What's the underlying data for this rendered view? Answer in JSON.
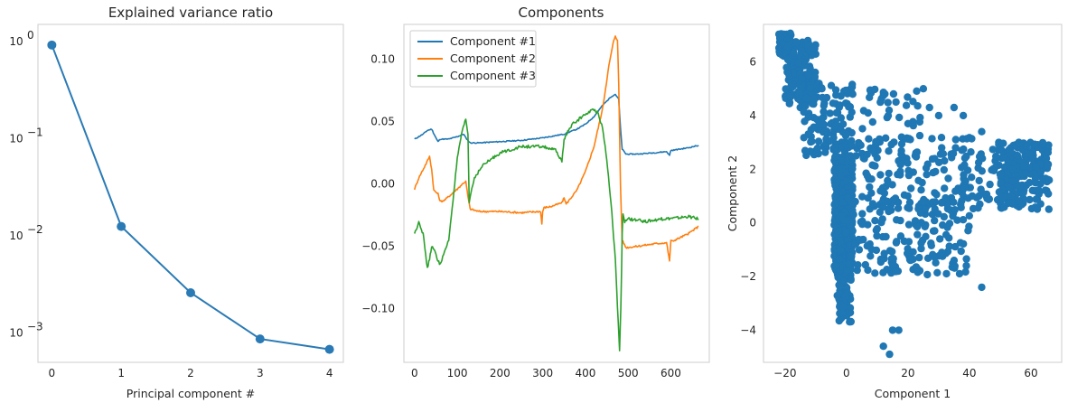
{
  "chart_data": [
    {
      "type": "line",
      "title": "Explained variance ratio",
      "xlabel": "Principal component #",
      "ylabel": "",
      "yscale": "log",
      "xlim": [
        -0.2,
        4.2
      ],
      "ylim": [
        0.0005,
        1.5
      ],
      "grid": false,
      "x_ticks": [
        {
          "value": 0,
          "label": "0"
        },
        {
          "value": 1,
          "label": "1"
        },
        {
          "value": 2,
          "label": "2"
        },
        {
          "value": 3,
          "label": "3"
        },
        {
          "value": 4,
          "label": "4"
        }
      ],
      "y_ticks": [
        {
          "value": 1,
          "base": "10",
          "exp": "0"
        },
        {
          "value": 0.1,
          "base": "10",
          "exp": "−1"
        },
        {
          "value": 0.01,
          "base": "10",
          "exp": "−2"
        },
        {
          "value": 0.001,
          "base": "10",
          "exp": "−3"
        }
      ],
      "series": [
        {
          "x": [
            0,
            1,
            2,
            3,
            4
          ],
          "values": [
            0.92,
            0.0125,
            0.0026,
            0.00087,
            0.00068
          ],
          "color": "#2a7ab5",
          "marker": "circle"
        }
      ]
    },
    {
      "type": "line",
      "title": "Components",
      "xlabel": "",
      "ylabel": "",
      "xlim": [
        -25,
        690
      ],
      "ylim": [
        -0.143,
        0.128
      ],
      "grid": false,
      "legend_position": "top-left",
      "x_ticks": [
        {
          "value": 0,
          "label": "0"
        },
        {
          "value": 100,
          "label": "100"
        },
        {
          "value": 200,
          "label": "200"
        },
        {
          "value": 300,
          "label": "300"
        },
        {
          "value": 400,
          "label": "400"
        },
        {
          "value": 500,
          "label": "500"
        },
        {
          "value": 600,
          "label": "600"
        }
      ],
      "y_ticks": [
        {
          "value": 0.1,
          "label": "0.10"
        },
        {
          "value": 0.05,
          "label": "0.05"
        },
        {
          "value": 0.0,
          "label": "0.00"
        },
        {
          "value": -0.05,
          "label": "−0.05"
        },
        {
          "value": -0.1,
          "label": "−0.10"
        }
      ],
      "series": [
        {
          "name": "Component #1",
          "color": "#1f77b4",
          "x": [
            0,
            20,
            30,
            40,
            50,
            55,
            60,
            80,
            100,
            115,
            120,
            130,
            150,
            200,
            250,
            300,
            350,
            380,
            400,
            420,
            440,
            460,
            470,
            478,
            482,
            486,
            495,
            520,
            560,
            590,
            597,
            600,
            603,
            640,
            665
          ],
          "values": [
            0.036,
            0.04,
            0.043,
            0.044,
            0.037,
            0.034,
            0.036,
            0.036,
            0.038,
            0.04,
            0.037,
            0.033,
            0.033,
            0.034,
            0.035,
            0.037,
            0.04,
            0.044,
            0.048,
            0.054,
            0.063,
            0.07,
            0.072,
            0.068,
            0.045,
            0.028,
            0.024,
            0.024,
            0.025,
            0.026,
            0.023,
            0.027,
            0.027,
            0.029,
            0.031
          ]
        },
        {
          "name": "Component #2",
          "color": "#ff7f0e",
          "x": [
            0,
            10,
            25,
            35,
            40,
            45,
            55,
            60,
            70,
            90,
            100,
            115,
            120,
            125,
            130,
            150,
            200,
            250,
            295,
            298,
            300,
            303,
            320,
            345,
            350,
            355,
            380,
            400,
            420,
            440,
            455,
            465,
            470,
            475,
            478,
            482,
            486,
            495,
            520,
            560,
            590,
            597,
            600,
            603,
            640,
            665
          ],
          "values": [
            -0.004,
            0.005,
            0.015,
            0.022,
            0.012,
            -0.005,
            -0.008,
            -0.014,
            -0.013,
            -0.007,
            -0.004,
            0.001,
            0.002,
            -0.01,
            -0.02,
            -0.022,
            -0.022,
            -0.023,
            -0.022,
            -0.032,
            -0.022,
            -0.019,
            -0.018,
            -0.015,
            -0.011,
            -0.016,
            -0.005,
            0.01,
            0.03,
            0.06,
            0.095,
            0.113,
            0.119,
            0.115,
            0.08,
            0.0,
            -0.045,
            -0.051,
            -0.05,
            -0.048,
            -0.047,
            -0.062,
            -0.045,
            -0.046,
            -0.04,
            -0.034
          ]
        },
        {
          "name": "Component #3",
          "color": "#2ca02c",
          "x": [
            0,
            10,
            20,
            30,
            35,
            40,
            50,
            55,
            60,
            70,
            80,
            100,
            110,
            120,
            125,
            128,
            130,
            140,
            160,
            180,
            200,
            250,
            300,
            330,
            345,
            350,
            355,
            370,
            400,
            420,
            430,
            440,
            450,
            460,
            470,
            475,
            480,
            483,
            486,
            488,
            492,
            500,
            540,
            580,
            620,
            640,
            665
          ],
          "values": [
            -0.04,
            -0.03,
            -0.04,
            -0.068,
            -0.06,
            -0.05,
            -0.056,
            -0.062,
            -0.064,
            -0.055,
            -0.045,
            0.02,
            0.04,
            0.052,
            0.04,
            -0.015,
            -0.01,
            0.005,
            0.015,
            0.02,
            0.025,
            0.03,
            0.03,
            0.027,
            0.018,
            0.035,
            0.04,
            0.048,
            0.056,
            0.06,
            0.057,
            0.045,
            0.02,
            -0.015,
            -0.06,
            -0.1,
            -0.133,
            -0.1,
            -0.04,
            -0.025,
            -0.03,
            -0.028,
            -0.03,
            -0.028,
            -0.027,
            -0.026,
            -0.028
          ]
        }
      ]
    },
    {
      "type": "scatter",
      "title": "",
      "xlabel": "Component 1",
      "ylabel": "Component 2",
      "xlim": [
        -27,
        70
      ],
      "ylim": [
        -5.2,
        7.4
      ],
      "grid": false,
      "x_ticks": [
        {
          "value": -20,
          "label": "−20"
        },
        {
          "value": 0,
          "label": "0"
        },
        {
          "value": 20,
          "label": "20"
        },
        {
          "value": 40,
          "label": "40"
        },
        {
          "value": 60,
          "label": "60"
        }
      ],
      "y_ticks": [
        {
          "value": -4,
          "label": "−4"
        },
        {
          "value": -2,
          "label": "−2"
        },
        {
          "value": 0,
          "label": "0"
        },
        {
          "value": 2,
          "label": "2"
        },
        {
          "value": 4,
          "label": "4"
        },
        {
          "value": 6,
          "label": "6"
        }
      ],
      "marker_color": "#1f77b4",
      "point_count_estimate": 1500,
      "regions": [
        {
          "x_range": [
            -22,
            -18
          ],
          "y_range": [
            6.2,
            7.1
          ],
          "count": 90
        },
        {
          "x_range": [
            -20,
            -10
          ],
          "y_range": [
            4.3,
            6.8
          ],
          "count": 150
        },
        {
          "x_range": [
            -14,
            2
          ],
          "y_range": [
            2.5,
            5.2
          ],
          "count": 120
        },
        {
          "x_range": [
            -4,
            2
          ],
          "y_range": [
            -2.0,
            2.5
          ],
          "count": 420
        },
        {
          "x_range": [
            -3,
            1.5
          ],
          "y_range": [
            -3.7,
            -2.0
          ],
          "count": 60
        },
        {
          "x_range": [
            0,
            55
          ],
          "y_range": [
            0.5,
            3.2
          ],
          "count": 200
        },
        {
          "x_range": [
            2,
            40
          ],
          "y_range": [
            -2.0,
            0.8
          ],
          "count": 160
        },
        {
          "x_range": [
            50,
            66
          ],
          "y_range": [
            0.5,
            3.0
          ],
          "count": 190
        },
        {
          "x_range": [
            5,
            25
          ],
          "y_range": [
            2.5,
            5.0
          ],
          "count": 40
        }
      ],
      "outliers": [
        {
          "x": 15,
          "y": -4.0
        },
        {
          "x": 17,
          "y": -4.0
        },
        {
          "x": 12,
          "y": -4.6
        },
        {
          "x": 14,
          "y": -4.9
        },
        {
          "x": 44,
          "y": -2.4
        },
        {
          "x": 25,
          "y": 5.0
        },
        {
          "x": 35,
          "y": 4.3
        },
        {
          "x": 38,
          "y": 4.0
        },
        {
          "x": 11,
          "y": 4.5
        },
        {
          "x": 27,
          "y": 4.3
        },
        {
          "x": 20,
          "y": 3.7
        },
        {
          "x": 44,
          "y": 3.4
        },
        {
          "x": 7,
          "y": 4.1
        },
        {
          "x": 2,
          "y": 4.8
        },
        {
          "x": -8,
          "y": 5.0
        },
        {
          "x": 30,
          "y": 4.0
        },
        {
          "x": 31,
          "y": -1.1
        },
        {
          "x": 35,
          "y": -1.4
        },
        {
          "x": 39,
          "y": -1.6
        },
        {
          "x": 23,
          "y": -1.7
        }
      ]
    }
  ]
}
